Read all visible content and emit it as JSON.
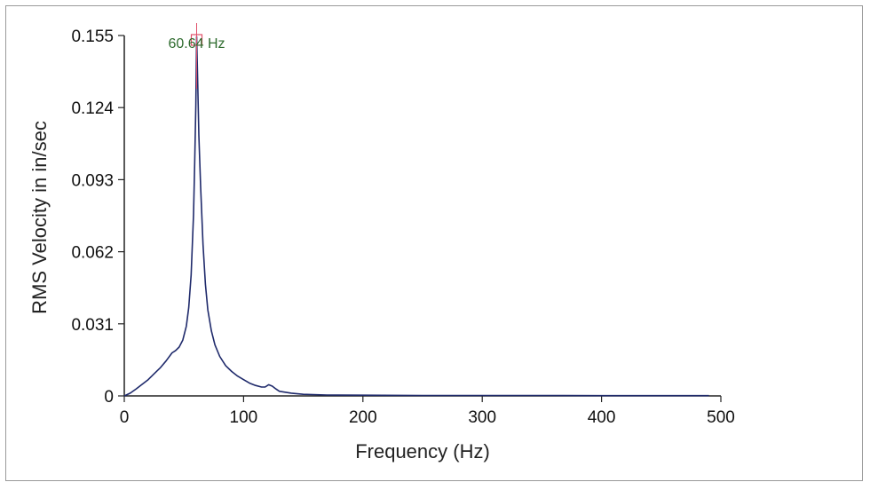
{
  "chart_data": {
    "type": "line",
    "xlabel": "Frequency (Hz)",
    "ylabel": "RMS Velocity in in/sec",
    "xlim": [
      0,
      500
    ],
    "ylim": [
      0,
      0.155
    ],
    "x_ticks": [
      "0",
      "100",
      "200",
      "300",
      "400",
      "500"
    ],
    "y_ticks": [
      "0",
      "0.031",
      "0.062",
      "0.093",
      "0.124",
      "0.155"
    ],
    "grid": false,
    "legend": "none",
    "series": [
      {
        "color": "#1f2a6b",
        "points": [
          [
            0,
            0.0
          ],
          [
            5,
            0.0012
          ],
          [
            10,
            0.003
          ],
          [
            15,
            0.005
          ],
          [
            20,
            0.007
          ],
          [
            25,
            0.0095
          ],
          [
            30,
            0.012
          ],
          [
            35,
            0.015
          ],
          [
            40,
            0.0185
          ],
          [
            43,
            0.0195
          ],
          [
            46,
            0.021
          ],
          [
            49,
            0.024
          ],
          [
            52,
            0.03
          ],
          [
            54,
            0.038
          ],
          [
            56,
            0.052
          ],
          [
            58,
            0.078
          ],
          [
            59,
            0.1
          ],
          [
            60,
            0.125
          ],
          [
            60.64,
            0.1545
          ],
          [
            61.5,
            0.135
          ],
          [
            62.5,
            0.112
          ],
          [
            64,
            0.09
          ],
          [
            66,
            0.065
          ],
          [
            68,
            0.048
          ],
          [
            70,
            0.037
          ],
          [
            73,
            0.028
          ],
          [
            76,
            0.022
          ],
          [
            80,
            0.017
          ],
          [
            85,
            0.013
          ],
          [
            90,
            0.0105
          ],
          [
            95,
            0.0085
          ],
          [
            100,
            0.007
          ],
          [
            105,
            0.0055
          ],
          [
            110,
            0.0045
          ],
          [
            115,
            0.0038
          ],
          [
            118,
            0.0038
          ],
          [
            121,
            0.0048
          ],
          [
            124,
            0.0042
          ],
          [
            127,
            0.003
          ],
          [
            130,
            0.002
          ],
          [
            140,
            0.0012
          ],
          [
            150,
            0.0007
          ],
          [
            170,
            0.0004
          ],
          [
            200,
            0.0003
          ],
          [
            250,
            0.0002
          ],
          [
            300,
            0.0002
          ],
          [
            360,
            0.0002
          ],
          [
            400,
            0.0001
          ],
          [
            450,
            0.0001
          ],
          [
            490,
            0.0001
          ]
        ]
      }
    ],
    "annotations": [
      {
        "text": "60.64 Hz",
        "x": 60.64,
        "y": 0.155,
        "color": "#2e6b2e",
        "marker_color": "#e0506a"
      }
    ]
  }
}
